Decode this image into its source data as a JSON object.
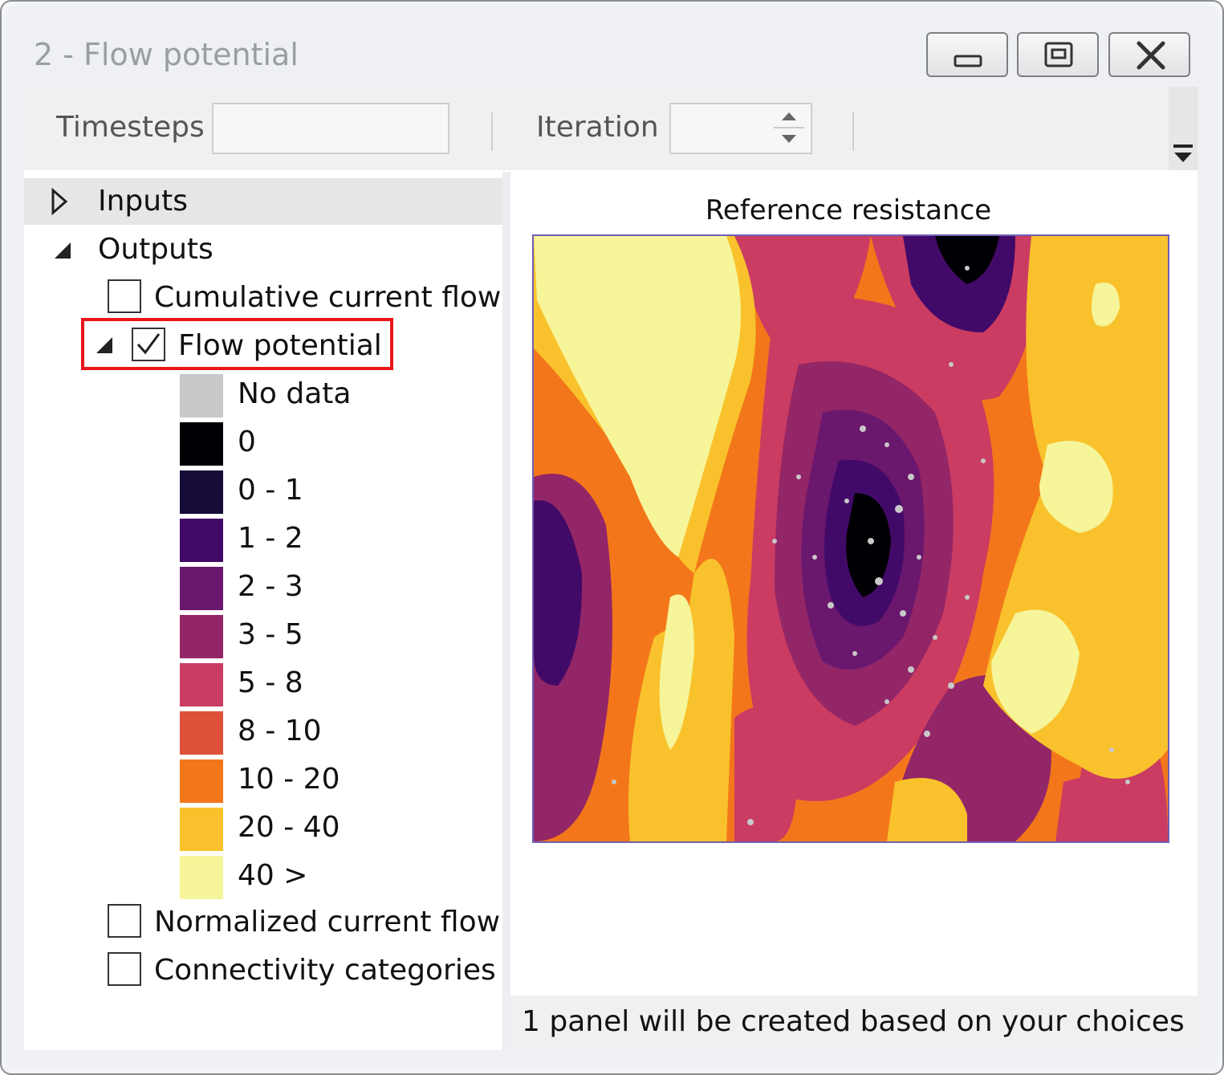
{
  "window": {
    "title": "2 - Flow potential"
  },
  "toolbar": {
    "timesteps_label": "Timesteps",
    "timesteps_value": "",
    "iteration_label": "Iteration",
    "iteration_value": ""
  },
  "tree": {
    "inputs_label": "Inputs",
    "outputs_label": "Outputs",
    "items": [
      {
        "label": "Cumulative current flow",
        "checked": false
      },
      {
        "label": "Flow potential",
        "checked": true
      },
      {
        "label": "Normalized current flow",
        "checked": false
      },
      {
        "label": "Connectivity categories",
        "checked": false
      }
    ],
    "legend": [
      {
        "label": "No data",
        "color": "#c8c8c8"
      },
      {
        "label": "0",
        "color": "#000004"
      },
      {
        "label": "0 - 1",
        "color": "#160b39"
      },
      {
        "label": "1 - 2",
        "color": "#420a68"
      },
      {
        "label": "2 - 3",
        "color": "#6a176e"
      },
      {
        "label": "3 - 5",
        "color": "#932667"
      },
      {
        "label": "5 - 8",
        "color": "#cb3c62"
      },
      {
        "label": "8 - 10",
        "color": "#dd513a"
      },
      {
        "label": "10 - 20",
        "color": "#f3771a"
      },
      {
        "label": "20 - 40",
        "color": "#f9c22c"
      },
      {
        "label": "40 >",
        "color": "#f6f59a"
      }
    ]
  },
  "map": {
    "title": "Reference resistance"
  },
  "status": {
    "text": "1 panel will be created based on your choices"
  }
}
